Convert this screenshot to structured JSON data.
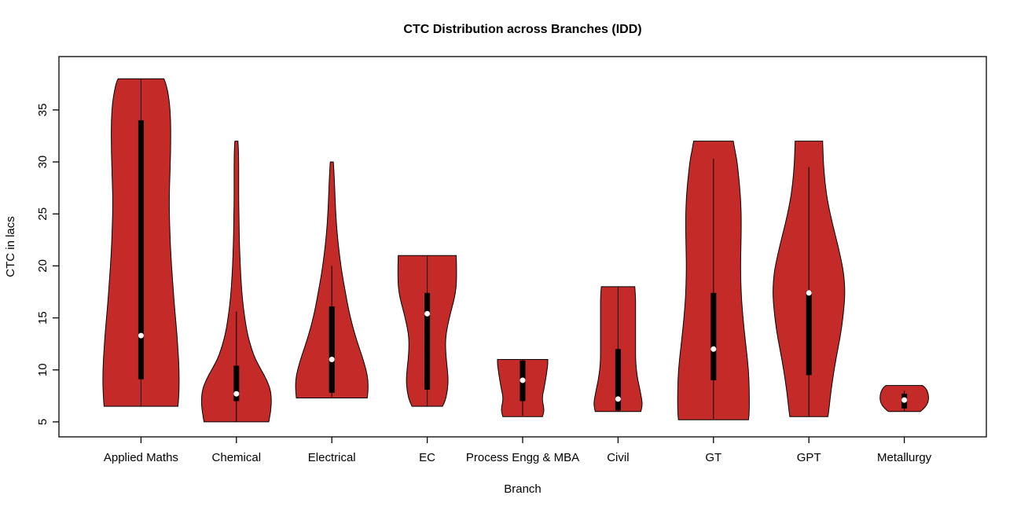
{
  "chart_data": {
    "type": "violin",
    "title": "CTC Distribution across Branches (IDD)",
    "xlabel": "Branch",
    "ylabel": "CTC in lacs",
    "yticks": [
      5,
      10,
      15,
      20,
      25,
      30,
      35
    ],
    "ylim": [
      3.56,
      40.13
    ],
    "grid": false,
    "legend": "none",
    "colors": {
      "violin_fill": "#C42B28",
      "violin_outline": "#000000",
      "box": "#000000",
      "median_dot": "#FFFFFF",
      "axis": "#000000",
      "background": "#FFFFFF"
    },
    "categories": [
      "Applied Maths",
      "Chemical",
      "Electrical",
      "EC",
      "Process Engg & MBA",
      "Civil",
      "GT",
      "GPT",
      "Metallurgy"
    ],
    "series": [
      {
        "name": "Applied Maths",
        "min": 6.5,
        "max": 38,
        "q1": 9.1,
        "q3": 34,
        "median": 13.3,
        "whisker_low": 6.5,
        "whisker_high": 38,
        "profile": [
          [
            6.5,
            0.97
          ],
          [
            8,
            1.0
          ],
          [
            10,
            1.0
          ],
          [
            12,
            0.97
          ],
          [
            14,
            0.93
          ],
          [
            16,
            0.88
          ],
          [
            18,
            0.84
          ],
          [
            20,
            0.8
          ],
          [
            22,
            0.77
          ],
          [
            24,
            0.75
          ],
          [
            26,
            0.74
          ],
          [
            28,
            0.75
          ],
          [
            30,
            0.77
          ],
          [
            32,
            0.78
          ],
          [
            34,
            0.78
          ],
          [
            36,
            0.74
          ],
          [
            37.5,
            0.66
          ],
          [
            38,
            0.6
          ]
        ]
      },
      {
        "name": "Chemical",
        "min": 5,
        "max": 32,
        "q1": 7.0,
        "q3": 10.4,
        "median": 7.7,
        "whisker_low": 5.0,
        "whisker_high": 15.6,
        "profile": [
          [
            5,
            0.85
          ],
          [
            6,
            0.9
          ],
          [
            7,
            0.92
          ],
          [
            8,
            0.9
          ],
          [
            9,
            0.8
          ],
          [
            10,
            0.65
          ],
          [
            11,
            0.5
          ],
          [
            12,
            0.4
          ],
          [
            13,
            0.32
          ],
          [
            14,
            0.26
          ],
          [
            16,
            0.18
          ],
          [
            18,
            0.13
          ],
          [
            20,
            0.1
          ],
          [
            22,
            0.08
          ],
          [
            24,
            0.07
          ],
          [
            26,
            0.06
          ],
          [
            28,
            0.06
          ],
          [
            30,
            0.06
          ],
          [
            31.5,
            0.05
          ],
          [
            32,
            0.04
          ]
        ]
      },
      {
        "name": "Electrical",
        "min": 7.3,
        "max": 30,
        "q1": 7.8,
        "q3": 16.1,
        "median": 11.0,
        "whisker_low": 7.4,
        "whisker_high": 20.0,
        "profile": [
          [
            7.3,
            0.93
          ],
          [
            8,
            0.95
          ],
          [
            9,
            0.95
          ],
          [
            10,
            0.9
          ],
          [
            11,
            0.82
          ],
          [
            12,
            0.73
          ],
          [
            13,
            0.64
          ],
          [
            14,
            0.56
          ],
          [
            15,
            0.49
          ],
          [
            16,
            0.43
          ],
          [
            17,
            0.38
          ],
          [
            18,
            0.33
          ],
          [
            19,
            0.28
          ],
          [
            20,
            0.24
          ],
          [
            22,
            0.17
          ],
          [
            24,
            0.12
          ],
          [
            26,
            0.09
          ],
          [
            28,
            0.07
          ],
          [
            29.5,
            0.05
          ],
          [
            30,
            0.04
          ]
        ]
      },
      {
        "name": "EC",
        "min": 6.5,
        "max": 21,
        "q1": 8.1,
        "q3": 17.4,
        "median": 15.4,
        "whisker_low": 6.5,
        "whisker_high": 21,
        "profile": [
          [
            6.5,
            0.4
          ],
          [
            7,
            0.47
          ],
          [
            8,
            0.53
          ],
          [
            9,
            0.55
          ],
          [
            10,
            0.53
          ],
          [
            11,
            0.5
          ],
          [
            12,
            0.48
          ],
          [
            13,
            0.48
          ],
          [
            14,
            0.52
          ],
          [
            15,
            0.58
          ],
          [
            16,
            0.65
          ],
          [
            17,
            0.72
          ],
          [
            18,
            0.76
          ],
          [
            19,
            0.77
          ],
          [
            20,
            0.77
          ],
          [
            21,
            0.76
          ]
        ]
      },
      {
        "name": "Process Engg & MBA",
        "min": 5.5,
        "max": 11,
        "q1": 7.0,
        "q3": 10.9,
        "median": 9.0,
        "whisker_low": 5.6,
        "whisker_high": 11,
        "profile": [
          [
            5.5,
            0.52
          ],
          [
            6,
            0.56
          ],
          [
            6.5,
            0.55
          ],
          [
            7,
            0.52
          ],
          [
            7.5,
            0.52
          ],
          [
            8,
            0.55
          ],
          [
            9,
            0.6
          ],
          [
            10,
            0.64
          ],
          [
            10.5,
            0.66
          ],
          [
            11,
            0.66
          ]
        ]
      },
      {
        "name": "Civil",
        "min": 6,
        "max": 18,
        "q1": 6.1,
        "q3": 12.0,
        "median": 7.2,
        "whisker_low": 6.0,
        "whisker_high": 18,
        "profile": [
          [
            6,
            0.6
          ],
          [
            6.5,
            0.63
          ],
          [
            7,
            0.63
          ],
          [
            8,
            0.58
          ],
          [
            9,
            0.52
          ],
          [
            10,
            0.48
          ],
          [
            11,
            0.46
          ],
          [
            12,
            0.46
          ],
          [
            13,
            0.46
          ],
          [
            14,
            0.46
          ],
          [
            15,
            0.46
          ],
          [
            16,
            0.46
          ],
          [
            17,
            0.46
          ],
          [
            18,
            0.44
          ]
        ]
      },
      {
        "name": "GT",
        "min": 5.2,
        "max": 32,
        "q1": 9.0,
        "q3": 17.4,
        "median": 12.0,
        "whisker_low": 5.3,
        "whisker_high": 30.3,
        "profile": [
          [
            5.2,
            0.92
          ],
          [
            6,
            0.94
          ],
          [
            8,
            0.94
          ],
          [
            10,
            0.92
          ],
          [
            12,
            0.86
          ],
          [
            14,
            0.8
          ],
          [
            16,
            0.75
          ],
          [
            18,
            0.72
          ],
          [
            20,
            0.71
          ],
          [
            22,
            0.72
          ],
          [
            24,
            0.73
          ],
          [
            26,
            0.72
          ],
          [
            28,
            0.68
          ],
          [
            30,
            0.62
          ],
          [
            31,
            0.57
          ],
          [
            32,
            0.52
          ]
        ]
      },
      {
        "name": "GPT",
        "min": 5.5,
        "max": 32,
        "q1": 9.5,
        "q3": 17.6,
        "median": 17.4,
        "whisker_low": 5.5,
        "whisker_high": 29.5,
        "profile": [
          [
            5.5,
            0.5
          ],
          [
            6,
            0.52
          ],
          [
            8,
            0.58
          ],
          [
            10,
            0.66
          ],
          [
            12,
            0.76
          ],
          [
            14,
            0.86
          ],
          [
            16,
            0.92
          ],
          [
            17,
            0.94
          ],
          [
            18,
            0.94
          ],
          [
            19,
            0.92
          ],
          [
            20,
            0.88
          ],
          [
            22,
            0.76
          ],
          [
            24,
            0.62
          ],
          [
            26,
            0.5
          ],
          [
            28,
            0.42
          ],
          [
            30,
            0.38
          ],
          [
            31,
            0.37
          ],
          [
            32,
            0.36
          ]
        ]
      },
      {
        "name": "Metallurgy",
        "min": 6,
        "max": 8.5,
        "q1": 6.3,
        "q3": 7.7,
        "median": 7.1,
        "whisker_low": 6.0,
        "whisker_high": 8.0,
        "profile": [
          [
            6,
            0.42
          ],
          [
            6.3,
            0.52
          ],
          [
            6.7,
            0.6
          ],
          [
            7,
            0.63
          ],
          [
            7.5,
            0.64
          ],
          [
            8,
            0.6
          ],
          [
            8.3,
            0.55
          ],
          [
            8.5,
            0.48
          ]
        ]
      }
    ]
  }
}
